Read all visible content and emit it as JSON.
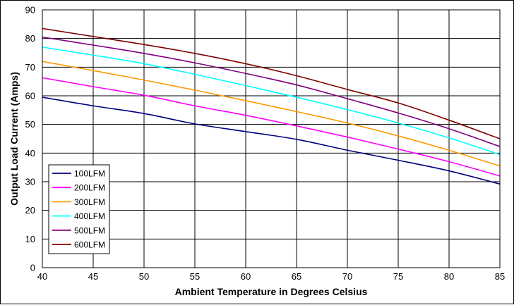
{
  "chart_data": {
    "type": "line",
    "title": "",
    "xlabel": "Ambient Temperature in Degrees Celsius",
    "ylabel": "Output  Load Current (Amps)",
    "xlim": [
      40,
      85
    ],
    "ylim": [
      0,
      90
    ],
    "xticks": [
      40,
      45,
      50,
      55,
      60,
      65,
      70,
      75,
      80,
      85
    ],
    "yticks": [
      0,
      10,
      20,
      30,
      40,
      50,
      60,
      70,
      80,
      90
    ],
    "grid": true,
    "legend_position": "bottom-left",
    "x": [
      40,
      45,
      50,
      55,
      60,
      65,
      70,
      75,
      80,
      85
    ],
    "series": [
      {
        "name": "100LFM",
        "color": "#00007f",
        "values": [
          59.5,
          56.5,
          53.8,
          50.2,
          47.5,
          44.8,
          41.0,
          37.5,
          33.8,
          29.2
        ]
      },
      {
        "name": "200LFM",
        "color": "#ff00ff",
        "values": [
          66.3,
          63.2,
          60.2,
          56.5,
          53.2,
          49.5,
          45.6,
          41.4,
          37.0,
          32.0
        ]
      },
      {
        "name": "300LFM",
        "color": "#ff9900",
        "values": [
          72.0,
          68.8,
          65.5,
          62.0,
          58.3,
          54.5,
          50.5,
          46.0,
          41.0,
          35.5
        ]
      },
      {
        "name": "400LFM",
        "color": "#00ffff",
        "values": [
          77.0,
          74.2,
          71.2,
          67.5,
          63.6,
          59.5,
          55.2,
          50.5,
          45.3,
          39.5
        ]
      },
      {
        "name": "500LFM",
        "color": "#800080",
        "values": [
          80.5,
          77.7,
          74.8,
          71.5,
          67.8,
          63.8,
          59.0,
          54.0,
          48.5,
          42.3
        ]
      },
      {
        "name": "600LFM",
        "color": "#800000",
        "values": [
          83.5,
          80.7,
          77.9,
          74.8,
          71.2,
          67.0,
          62.2,
          57.5,
          51.5,
          45.0
        ]
      }
    ]
  }
}
